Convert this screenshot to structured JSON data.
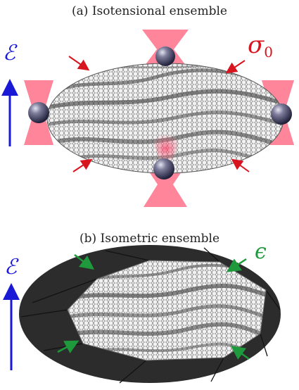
{
  "panel_a": {
    "title": "(a) Isotensional ensemble",
    "field_symbol": "ℰ",
    "tension_symbol": "σ",
    "tension_subscript": "0"
  },
  "panel_b": {
    "title": "(b) Isometric ensemble",
    "field_symbol": "ℰ",
    "strain_symbol": "ϵ"
  },
  "colors": {
    "field_arrow": "#1a1ad6",
    "force_arrow": "#d8141e",
    "strain_arrow": "#1e9a3c",
    "laser_beam": "#ff6f86",
    "bead": "#3a3a5a",
    "frame": "#2c2c2c"
  }
}
